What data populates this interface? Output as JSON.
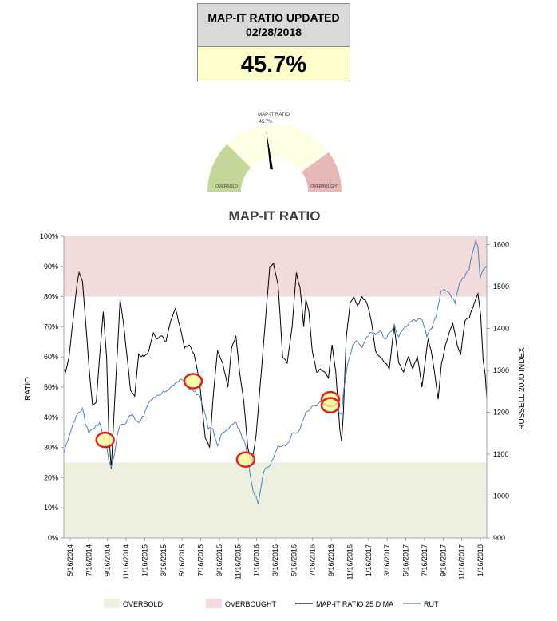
{
  "header": {
    "title": "MAP-IT RATIO UPDATED",
    "date": "02/28/2018",
    "value": "45.7%"
  },
  "gauge": {
    "label": "MAP-IT RATIO",
    "value_label": "45.7%",
    "value": 45.7,
    "oversold_label": "OVERSOLD",
    "overbought_label": "OVERBOUGHT"
  },
  "chart_data": {
    "type": "line",
    "title": "MAP-IT RATIO",
    "ylabel": "RATIO",
    "y2label": "RUSSELL 2000 INDEX",
    "ylim": [
      0,
      100
    ],
    "y2lim": [
      900,
      1620
    ],
    "yticks": [
      "0%",
      "10%",
      "20%",
      "30%",
      "40%",
      "50%",
      "60%",
      "70%",
      "80%",
      "90%",
      "100%"
    ],
    "y2ticks": [
      "900",
      "1000",
      "1100",
      "1200",
      "1300",
      "1400",
      "1500",
      "1600"
    ],
    "x_tick_labels": [
      "5/16/2014",
      "7/16/2014",
      "9/16/2014",
      "11/16/2014",
      "1/16/2015",
      "3/16/2015",
      "5/16/2015",
      "7/16/2015",
      "9/16/2015",
      "11/16/2015",
      "1/16/2016",
      "3/16/2016",
      "5/16/2016",
      "7/16/2016",
      "9/16/2016",
      "11/16/2016",
      "1/16/2017",
      "3/16/2017",
      "5/16/2017",
      "7/16/2017",
      "9/16/2017",
      "11/16/2017",
      "1/16/2018"
    ],
    "x_range": [
      "2014-05-16",
      "2018-02-28"
    ],
    "bands": [
      {
        "name": "OVERSOLD",
        "from": 0,
        "to": 25,
        "color": "#ebf1de"
      },
      {
        "name": "OVERBOUGHT",
        "from": 80,
        "to": 100,
        "color": "#f2dcdb"
      }
    ],
    "series": [
      {
        "name": "MAP-IT RATIO 25 D MA",
        "axis": "left",
        "color": "#000000",
        "x": [
          "2014-05-16",
          "2014-05-22",
          "2014-06-02",
          "2014-06-16",
          "2014-06-28",
          "2014-07-05",
          "2014-07-16",
          "2014-07-26",
          "2014-08-06",
          "2014-08-18",
          "2014-08-30",
          "2014-09-10",
          "2014-09-22",
          "2014-10-03",
          "2014-10-10",
          "2014-10-18",
          "2014-10-29",
          "2014-11-08",
          "2014-11-16",
          "2014-11-26",
          "2014-12-09",
          "2014-12-20",
          "2015-01-03",
          "2015-01-16",
          "2015-02-02",
          "2015-02-18",
          "2015-03-05",
          "2015-03-16",
          "2015-04-01",
          "2015-04-15",
          "2015-05-01",
          "2015-05-16",
          "2015-05-31",
          "2015-06-15",
          "2015-06-30",
          "2015-07-16",
          "2015-08-03",
          "2015-08-22",
          "2015-09-05",
          "2015-09-16",
          "2015-10-01",
          "2015-10-18",
          "2015-11-04",
          "2015-11-16",
          "2015-11-30",
          "2015-12-12",
          "2015-12-26",
          "2016-01-08",
          "2016-01-20",
          "2016-02-04",
          "2016-02-16",
          "2016-02-28",
          "2016-03-10",
          "2016-03-20",
          "2016-04-01",
          "2016-04-16",
          "2016-05-01",
          "2016-05-16",
          "2016-06-01",
          "2016-06-15",
          "2016-06-27",
          "2016-07-09",
          "2016-07-16",
          "2016-07-26",
          "2016-08-06",
          "2016-08-20",
          "2016-09-02",
          "2016-09-16",
          "2016-09-28",
          "2016-10-10",
          "2016-10-22",
          "2016-11-04",
          "2016-11-10",
          "2016-11-16",
          "2016-11-25",
          "2016-12-08",
          "2016-12-20",
          "2017-01-01",
          "2017-01-16",
          "2017-01-31",
          "2017-02-15",
          "2017-03-01",
          "2017-03-16",
          "2017-04-01",
          "2017-04-15",
          "2017-05-01",
          "2017-05-16",
          "2017-06-01",
          "2017-06-16",
          "2017-07-01",
          "2017-07-16",
          "2017-07-31",
          "2017-08-10",
          "2017-08-20",
          "2017-08-30",
          "2017-09-10",
          "2017-09-22",
          "2017-10-03",
          "2017-10-16",
          "2017-10-28",
          "2017-11-09",
          "2017-11-23",
          "2017-12-05",
          "2017-12-19",
          "2018-01-02",
          "2018-01-12",
          "2018-01-22",
          "2018-01-30",
          "2018-02-08",
          "2018-02-16",
          "2018-02-23",
          "2018-02-28"
        ],
        "y": [
          56,
          55,
          60,
          73,
          84,
          88,
          85,
          72,
          57,
          44,
          45,
          60,
          75,
          60,
          35,
          23,
          45,
          63,
          79,
          72,
          60,
          49,
          47,
          61,
          60,
          62,
          68,
          66,
          67,
          65,
          72,
          76,
          70,
          63,
          64,
          61,
          52,
          33,
          30,
          46,
          62,
          58,
          50,
          63,
          67,
          55,
          45,
          30,
          24,
          34,
          49,
          64,
          78,
          90,
          91,
          84,
          60,
          58,
          70,
          88,
          83,
          70,
          79,
          75,
          62,
          55,
          56,
          55,
          53,
          64,
          55,
          36,
          32,
          42,
          66,
          78,
          80,
          77,
          80,
          78,
          72,
          62,
          60,
          58,
          56,
          70,
          58,
          55,
          60,
          56,
          60,
          50,
          58,
          66,
          62,
          55,
          46,
          58,
          64,
          68,
          71,
          64,
          61,
          72,
          73,
          76,
          79,
          81,
          74,
          59,
          54,
          46
        ]
      },
      {
        "name": "RUT",
        "axis": "right",
        "color": "#4f81bd",
        "x": [
          "2014-05-16",
          "2014-05-28",
          "2014-06-10",
          "2014-06-25",
          "2014-07-05",
          "2014-07-16",
          "2014-07-26",
          "2014-08-06",
          "2014-08-18",
          "2014-08-30",
          "2014-09-10",
          "2014-09-22",
          "2014-10-03",
          "2014-10-10",
          "2014-10-18",
          "2014-10-29",
          "2014-11-08",
          "2014-11-16",
          "2014-11-30",
          "2014-12-12",
          "2014-12-26",
          "2015-01-08",
          "2015-01-16",
          "2015-02-02",
          "2015-02-16",
          "2015-03-01",
          "2015-03-16",
          "2015-04-01",
          "2015-04-16",
          "2015-05-01",
          "2015-05-16",
          "2015-06-01",
          "2015-06-16",
          "2015-06-30",
          "2015-07-16",
          "2015-08-03",
          "2015-08-20",
          "2015-09-01",
          "2015-09-16",
          "2015-10-01",
          "2015-10-16",
          "2015-11-01",
          "2015-11-16",
          "2015-12-01",
          "2015-12-16",
          "2016-01-01",
          "2016-01-08",
          "2016-01-16",
          "2016-01-26",
          "2016-02-04",
          "2016-02-11",
          "2016-02-20",
          "2016-03-01",
          "2016-03-16",
          "2016-04-01",
          "2016-04-16",
          "2016-05-01",
          "2016-05-16",
          "2016-06-01",
          "2016-06-16",
          "2016-06-27",
          "2016-07-09",
          "2016-07-16",
          "2016-08-01",
          "2016-08-16",
          "2016-09-01",
          "2016-09-16",
          "2016-10-01",
          "2016-10-16",
          "2016-11-01",
          "2016-11-10",
          "2016-11-16",
          "2016-12-01",
          "2016-12-16",
          "2017-01-01",
          "2017-01-16",
          "2017-02-01",
          "2017-02-16",
          "2017-03-01",
          "2017-03-16",
          "2017-04-01",
          "2017-04-16",
          "2017-05-01",
          "2017-05-16",
          "2017-06-01",
          "2017-06-16",
          "2017-07-01",
          "2017-07-16",
          "2017-08-01",
          "2017-08-16",
          "2017-09-01",
          "2017-09-16",
          "2017-10-01",
          "2017-10-16",
          "2017-11-01",
          "2017-11-16",
          "2017-12-01",
          "2017-12-16",
          "2018-01-01",
          "2018-01-12",
          "2018-01-23",
          "2018-01-30",
          "2018-02-06",
          "2018-02-10",
          "2018-02-16",
          "2018-02-23",
          "2018-02-28"
        ],
        "y": [
          1100,
          1130,
          1160,
          1190,
          1200,
          1210,
          1170,
          1150,
          1160,
          1170,
          1175,
          1140,
          1120,
          1085,
          1070,
          1100,
          1150,
          1170,
          1170,
          1185,
          1195,
          1180,
          1175,
          1190,
          1220,
          1230,
          1240,
          1245,
          1250,
          1260,
          1270,
          1280,
          1280,
          1255,
          1250,
          1240,
          1200,
          1160,
          1160,
          1120,
          1150,
          1160,
          1170,
          1175,
          1150,
          1120,
          1090,
          1050,
          1010,
          1000,
          980,
          1020,
          1060,
          1070,
          1090,
          1120,
          1120,
          1125,
          1150,
          1150,
          1160,
          1185,
          1200,
          1210,
          1215,
          1225,
          1240,
          1235,
          1225,
          1200,
          1195,
          1250,
          1320,
          1360,
          1370,
          1355,
          1380,
          1390,
          1385,
          1395,
          1375,
          1390,
          1410,
          1380,
          1400,
          1410,
          1420,
          1420,
          1420,
          1380,
          1400,
          1430,
          1490,
          1490,
          1480,
          1460,
          1510,
          1520,
          1540,
          1580,
          1610,
          1595,
          1520,
          1530,
          1540,
          1545,
          1550
        ]
      }
    ],
    "markers": [
      {
        "date": "2014-09-28",
        "value": 32.5
      },
      {
        "date": "2015-07-13",
        "value": 52
      },
      {
        "date": "2016-01-01",
        "value": 26
      },
      {
        "date": "2016-10-04",
        "value": 46
      },
      {
        "date": "2016-10-04",
        "value": 44
      }
    ],
    "legend": [
      {
        "label": "OVERSOLD",
        "kind": "box",
        "color": "#ebf1de"
      },
      {
        "label": "OVERBOUGHT",
        "kind": "box",
        "color": "#f2dcdb"
      },
      {
        "label": "MAP-IT RATIO 25 D MA",
        "kind": "line",
        "color": "#000000"
      },
      {
        "label": "RUT",
        "kind": "line",
        "color": "#4f81bd"
      }
    ],
    "legend_position": "bottom",
    "grid": false
  }
}
